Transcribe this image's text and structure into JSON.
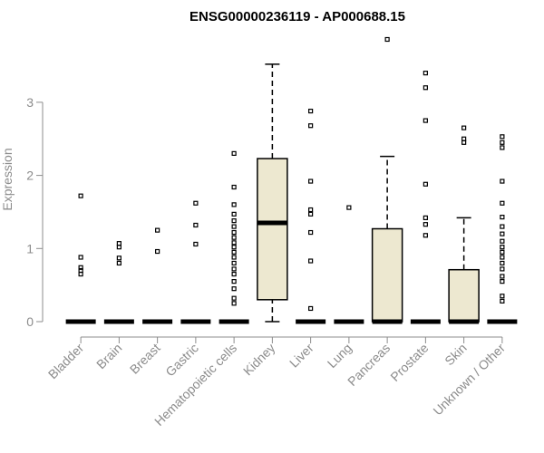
{
  "chart_data": {
    "type": "box",
    "title": "ENSG00000236119 - AP000688.15",
    "xlabel": "",
    "ylabel": "Expression",
    "ylim": [
      0,
      3.9
    ],
    "yticks": [
      0,
      1,
      2,
      3
    ],
    "box_fill": "#ede8d0",
    "categories": [
      "Bladder",
      "Brain",
      "Breast",
      "Gastric",
      "Hematopoietic cells",
      "Kidney",
      "Liver",
      "Lung",
      "Pancreas",
      "Prostate",
      "Skin",
      "Unknown / Other"
    ],
    "boxes": [
      {
        "category": "Bladder",
        "min": 0,
        "q1": 0,
        "median": 0,
        "q3": 0,
        "max": 0,
        "outliers": [
          0.65,
          0.7,
          0.74,
          0.88,
          1.72
        ]
      },
      {
        "category": "Brain",
        "min": 0,
        "q1": 0,
        "median": 0,
        "q3": 0,
        "max": 0,
        "outliers": [
          0.8,
          0.87,
          1.02,
          1.07
        ]
      },
      {
        "category": "Breast",
        "min": 0,
        "q1": 0,
        "median": 0,
        "q3": 0,
        "max": 0,
        "outliers": [
          0.96,
          1.25
        ]
      },
      {
        "category": "Gastric",
        "min": 0,
        "q1": 0,
        "median": 0,
        "q3": 0,
        "max": 0,
        "outliers": [
          1.06,
          1.32,
          1.62
        ]
      },
      {
        "category": "Hematopoietic cells",
        "min": 0,
        "q1": 0,
        "median": 0,
        "q3": 0,
        "max": 0,
        "outliers": [
          0.25,
          0.32,
          0.45,
          0.55,
          0.65,
          0.72,
          0.8,
          0.88,
          0.95,
          1.02,
          1.08,
          1.15,
          1.22,
          1.3,
          1.38,
          1.47,
          1.6,
          1.84,
          2.3
        ]
      },
      {
        "category": "Kidney",
        "min": 0,
        "q1": 0.3,
        "median": 1.35,
        "q3": 2.23,
        "max": 3.52,
        "outliers": []
      },
      {
        "category": "Liver",
        "min": 0,
        "q1": 0,
        "median": 0,
        "q3": 0,
        "max": 0,
        "outliers": [
          0.18,
          0.83,
          1.22,
          1.47,
          1.53,
          1.92,
          2.68,
          2.88
        ]
      },
      {
        "category": "Lung",
        "min": 0,
        "q1": 0,
        "median": 0,
        "q3": 0,
        "max": 0,
        "outliers": [
          1.56
        ]
      },
      {
        "category": "Pancreas",
        "min": 0,
        "q1": 0,
        "median": 0,
        "q3": 1.27,
        "max": 2.26,
        "outliers": [
          3.86
        ]
      },
      {
        "category": "Prostate",
        "min": 0,
        "q1": 0,
        "median": 0,
        "q3": 0,
        "max": 0,
        "outliers": [
          1.18,
          1.33,
          1.42,
          1.88,
          2.75,
          3.2,
          3.4
        ]
      },
      {
        "category": "Skin",
        "min": 0,
        "q1": 0,
        "median": 0,
        "q3": 0.71,
        "max": 1.42,
        "outliers": [
          2.45,
          2.5,
          2.65
        ]
      },
      {
        "category": "Unknown / Other",
        "min": 0,
        "q1": 0,
        "median": 0,
        "q3": 0,
        "max": 0,
        "outliers": [
          0.28,
          0.35,
          0.55,
          0.62,
          0.72,
          0.8,
          0.88,
          0.95,
          1.02,
          1.1,
          1.2,
          1.3,
          1.43,
          1.62,
          1.92,
          2.38,
          2.45,
          2.53
        ]
      }
    ]
  }
}
